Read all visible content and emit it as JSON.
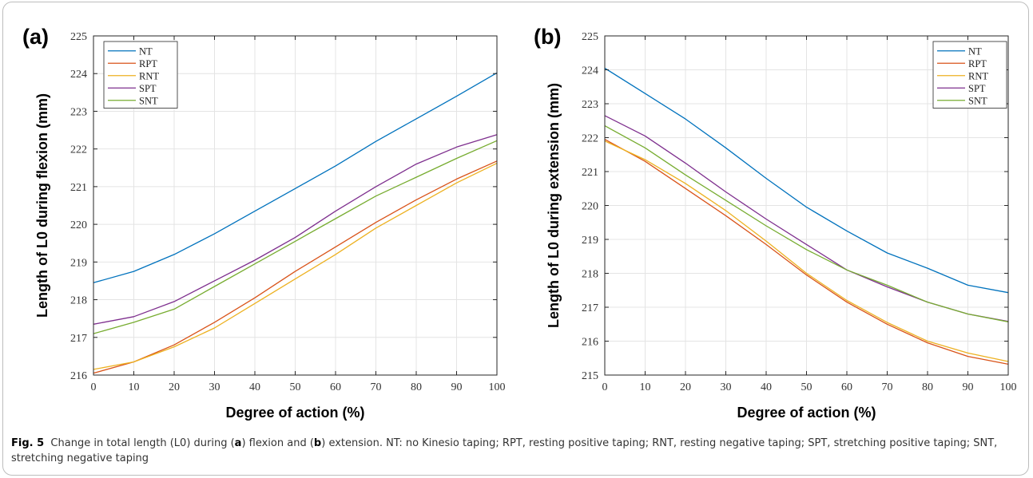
{
  "figure": {
    "caption": {
      "label": "Fig. 5",
      "parts": [
        {
          "t": "Change in total length (L0) during (",
          "b": false
        },
        {
          "t": "a",
          "b": true
        },
        {
          "t": ") flexion and (",
          "b": false
        },
        {
          "t": "b",
          "b": true
        },
        {
          "t": ") extension. NT: no Kinesio taping; RPT, resting positive taping; RNT, resting negative taping; SPT, stretching positive taping; SNT, stretching negative taping",
          "b": false
        }
      ]
    }
  },
  "colors": {
    "NT": "#0072BD",
    "RPT": "#D95319",
    "RNT": "#EDB120",
    "SPT": "#7E2F8E",
    "SNT": "#77AC30"
  },
  "chart_data": [
    {
      "type": "line",
      "panel_label": "(a)",
      "xlabel": "Degree of action (%)",
      "ylabel": "Length of L0 during flexion (mm)",
      "xlim": [
        0,
        100
      ],
      "ylim": [
        216,
        225
      ],
      "xticks": [
        0,
        10,
        20,
        30,
        40,
        50,
        60,
        70,
        80,
        90,
        100
      ],
      "yticks": [
        216,
        217,
        218,
        219,
        220,
        221,
        222,
        223,
        224,
        225
      ],
      "grid": true,
      "legend_position": "top-left",
      "x": [
        0,
        10,
        20,
        30,
        40,
        50,
        60,
        70,
        80,
        90,
        100
      ],
      "series": [
        {
          "name": "NT",
          "values": [
            218.45,
            218.75,
            219.2,
            219.75,
            220.35,
            220.95,
            221.55,
            222.2,
            222.8,
            223.4,
            224.02
          ]
        },
        {
          "name": "RPT",
          "values": [
            216.05,
            216.35,
            216.8,
            217.4,
            218.05,
            218.75,
            219.4,
            220.05,
            220.65,
            221.2,
            221.68
          ]
        },
        {
          "name": "RNT",
          "values": [
            216.15,
            216.35,
            216.75,
            217.25,
            217.9,
            218.55,
            219.2,
            219.9,
            220.5,
            221.1,
            221.62
          ]
        },
        {
          "name": "SPT",
          "values": [
            217.35,
            217.55,
            217.95,
            218.5,
            219.05,
            219.65,
            220.35,
            221.0,
            221.6,
            222.05,
            222.38
          ]
        },
        {
          "name": "SNT",
          "values": [
            217.1,
            217.4,
            217.75,
            218.35,
            218.95,
            219.55,
            220.15,
            220.75,
            221.25,
            221.75,
            222.22
          ]
        }
      ]
    },
    {
      "type": "line",
      "panel_label": "(b)",
      "xlabel": "Degree of action (%)",
      "ylabel": "Length of L0 during extension (mm)",
      "xlim": [
        0,
        100
      ],
      "ylim": [
        215,
        225
      ],
      "xticks": [
        0,
        10,
        20,
        30,
        40,
        50,
        60,
        70,
        80,
        90,
        100
      ],
      "yticks": [
        215,
        216,
        217,
        218,
        219,
        220,
        221,
        222,
        223,
        224,
        225
      ],
      "grid": true,
      "legend_position": "top-right",
      "x": [
        0,
        10,
        20,
        30,
        40,
        50,
        60,
        70,
        80,
        90,
        100
      ],
      "series": [
        {
          "name": "NT",
          "values": [
            224.05,
            223.3,
            222.55,
            221.7,
            220.8,
            219.95,
            219.25,
            218.6,
            218.15,
            217.65,
            217.43
          ]
        },
        {
          "name": "RPT",
          "values": [
            221.95,
            221.3,
            220.5,
            219.7,
            218.85,
            217.95,
            217.15,
            216.5,
            215.95,
            215.55,
            215.32
          ]
        },
        {
          "name": "RNT",
          "values": [
            221.9,
            221.35,
            220.65,
            219.85,
            218.95,
            218.0,
            217.2,
            216.55,
            216.0,
            215.65,
            215.4
          ]
        },
        {
          "name": "SPT",
          "values": [
            222.65,
            222.05,
            221.25,
            220.4,
            219.6,
            218.85,
            218.1,
            217.6,
            217.15,
            216.8,
            216.58
          ]
        },
        {
          "name": "SNT",
          "values": [
            222.35,
            221.7,
            220.9,
            220.15,
            219.4,
            218.7,
            218.1,
            217.65,
            217.15,
            216.8,
            216.57
          ]
        }
      ]
    }
  ]
}
